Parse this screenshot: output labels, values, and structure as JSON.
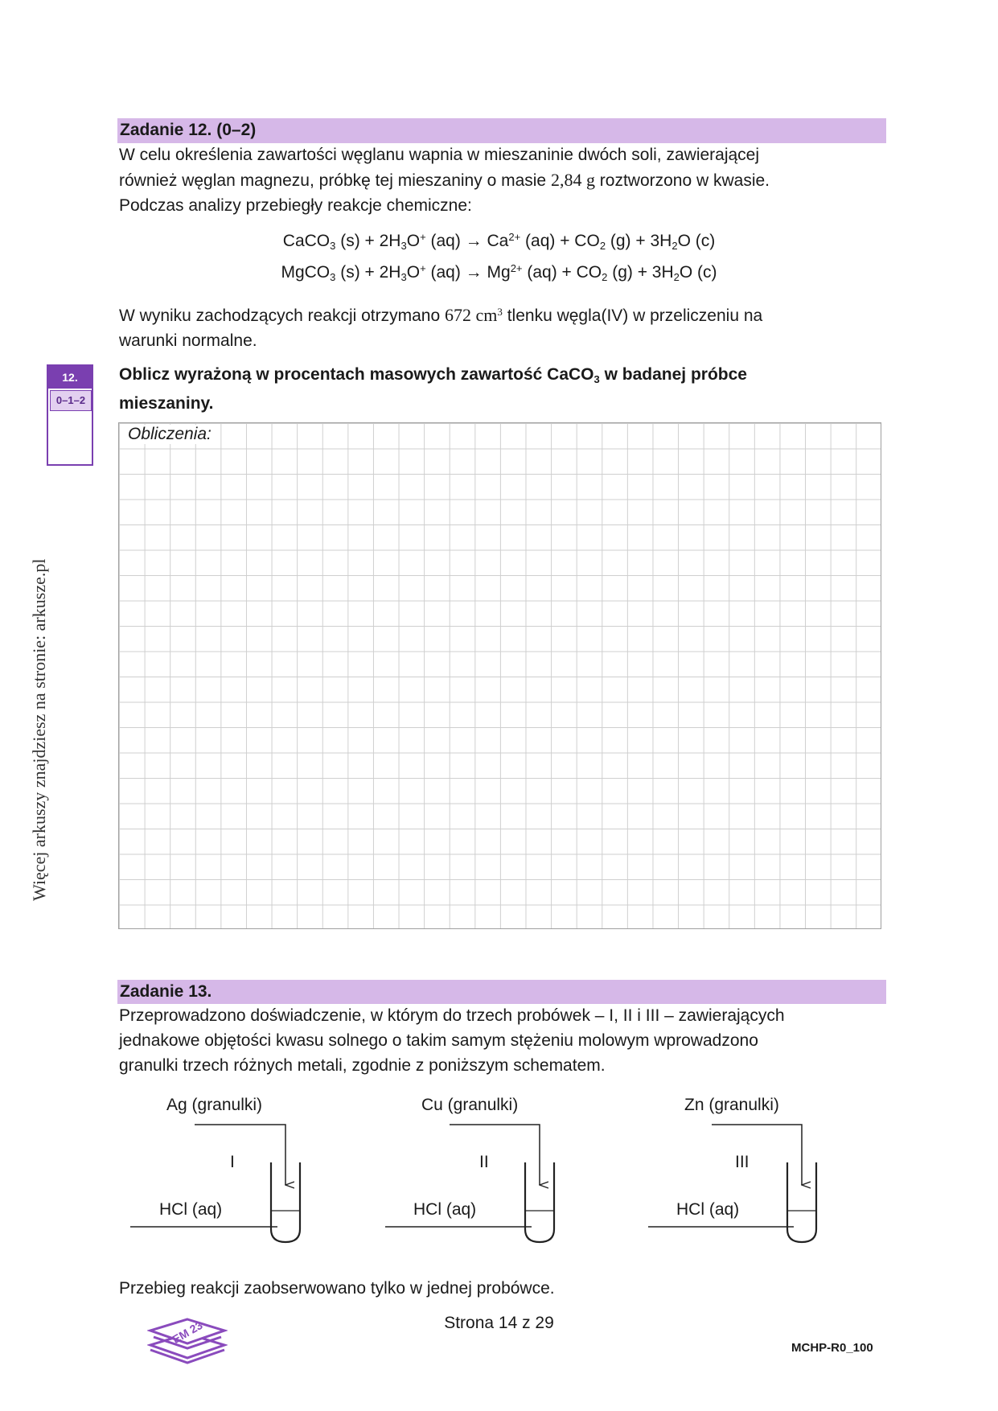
{
  "side_note": "Więcej arkuszy znajdziesz na stronie: arkusze.pl",
  "task12": {
    "title": "Zadanie 12. (0–2)",
    "intro_line1": "W celu określenia zawartości węglanu wapnia w mieszaninie dwóch soli, zawierającej",
    "intro_line2a": "również węglan magnezu, próbkę tej mieszaniny o masie ",
    "mass": "2,84 g",
    "intro_line2b": " roztworzono w kwasie.",
    "intro_line3": "Podczas analizy przebiegły reakcje chemiczne:",
    "reaction1": {
      "a": "CaCO",
      "a_sub": "3",
      "b": " (s) + 2H",
      "b_sub": "3",
      "c": "O",
      "c_sup": "+",
      "d": " (aq) → Ca",
      "d_sup": "2+",
      "e": " (aq) + CO",
      "e_sub": "2",
      "f": " (g) + 3H",
      "f_sub": "2",
      "g": "O (c)"
    },
    "reaction2": {
      "a": "MgCO",
      "a_sub": "3",
      "b": " (s) + 2H",
      "b_sub": "3",
      "c": "O",
      "c_sup": "+",
      "d": " (aq) → Mg",
      "d_sup": "2+",
      "e": " (aq) + CO",
      "e_sub": "2",
      "f": " (g) + 3H",
      "f_sub": "2",
      "g": "O (c)"
    },
    "result_a": "W wyniku zachodzących reakcji otrzymano ",
    "volume": "672 cm",
    "volume_sup": "3",
    "result_b": " tlenku węgla(IV) w przeliczeniu na",
    "result_line2": "warunki normalne.",
    "command_line1a": "Oblicz wyrażoną w procentach masowych zawartość CaCO",
    "command_sub": "3",
    "command_line1b": " w badanej próbce",
    "command_line2": "mieszaniny.",
    "grid_label": "Obliczenia:",
    "score_number": "12.",
    "score_points": "0–1–2"
  },
  "task13": {
    "title": "Zadanie 13.",
    "intro_line1": "Przeprowadzono doświadczenie, w którym do trzech probówek – I, II i III – zawierających",
    "intro_line2": "jednakowe objętości kwasu solnego o takim samym stężeniu molowym wprowadzono",
    "intro_line3": "granulki trzech różnych metali, zgodnie z poniższym schematem.",
    "tubes": [
      {
        "metal": "Ag (granulki)",
        "numeral": "I",
        "acid": "HCl (aq)"
      },
      {
        "metal": "Cu (granulki)",
        "numeral": "II",
        "acid": "HCl (aq)"
      },
      {
        "metal": "Zn (granulki)",
        "numeral": "III",
        "acid": "HCl (aq)"
      }
    ],
    "observation": "Przebieg reakcji zaobserwowano tylko w jednej probówce."
  },
  "footer": {
    "logo_text": "EM 23",
    "page": "Strona 14 z 29",
    "code": "MCHP-R0_100"
  },
  "colors": {
    "task_bar": "#d6b8e8",
    "score_accent": "#7a3fb0"
  }
}
